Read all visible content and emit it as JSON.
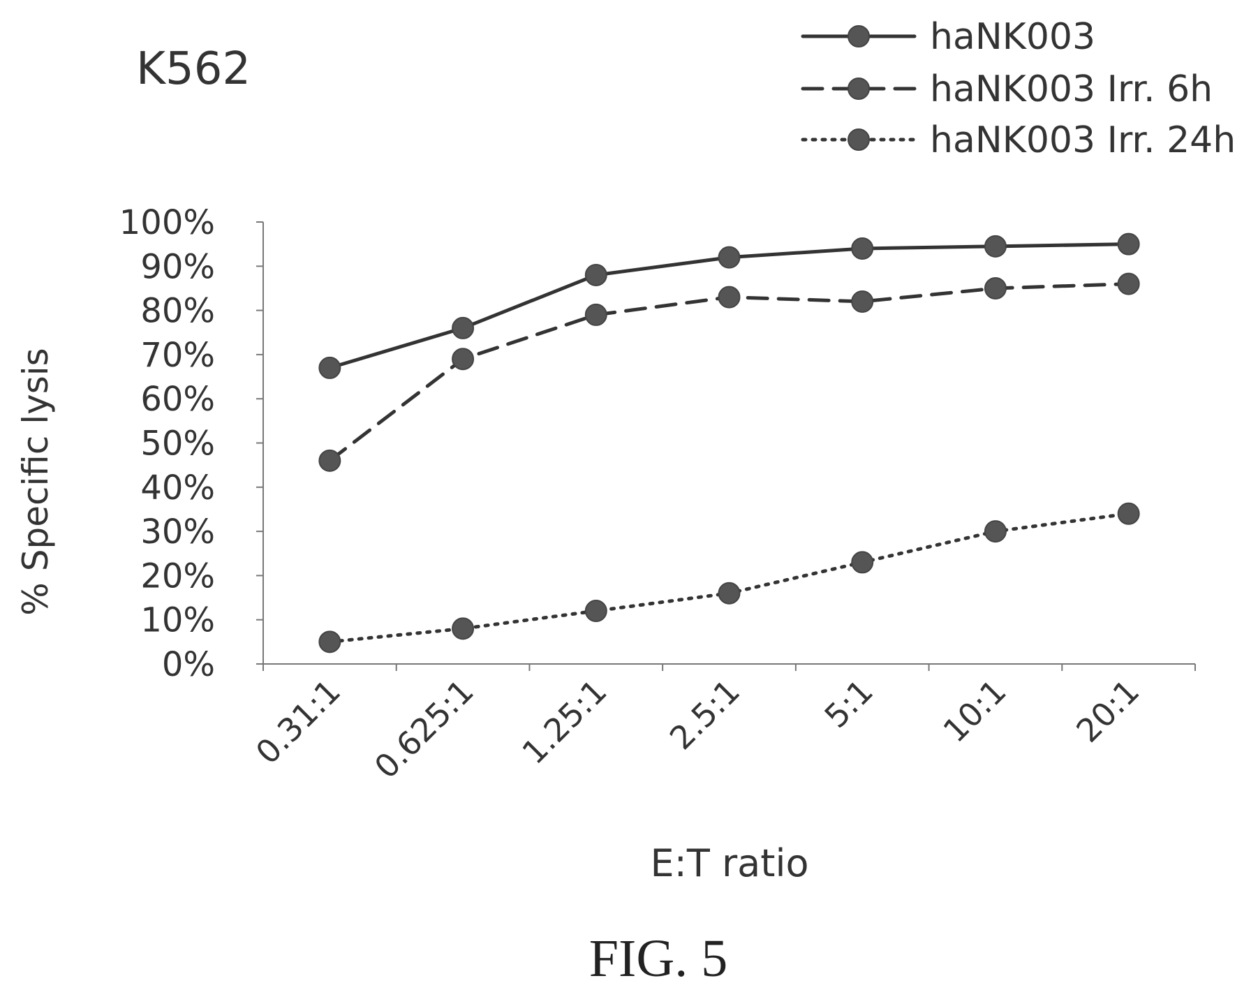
{
  "chart_data": {
    "type": "line",
    "title": "K562",
    "xlabel": "E:T ratio",
    "ylabel": "% Specific lysis",
    "categories": [
      "0.31:1",
      "0.625:1",
      "1.25:1",
      "2.5:1",
      "5:1",
      "10:1",
      "20:1"
    ],
    "y_ticks": [
      "0%",
      "10%",
      "20%",
      "30%",
      "40%",
      "50%",
      "60%",
      "70%",
      "80%",
      "90%",
      "100%"
    ],
    "ylim": [
      0,
      100
    ],
    "grid": false,
    "legend_position": "top-right",
    "series": [
      {
        "name": "haNK003",
        "line_style": "solid",
        "values": [
          67,
          76,
          88,
          92,
          94,
          94.5,
          95
        ]
      },
      {
        "name": "haNK003 Irr. 6h",
        "line_style": "dashed",
        "values": [
          46,
          69,
          79,
          83,
          82,
          85,
          86
        ]
      },
      {
        "name": "haNK003 Irr. 24h",
        "line_style": "dotted",
        "values": [
          5,
          8,
          12,
          16,
          23,
          30,
          34
        ]
      }
    ],
    "colors": {
      "line": "#333333",
      "marker": "#555555",
      "axis": "#777777"
    }
  },
  "caption": "FIG. 5"
}
